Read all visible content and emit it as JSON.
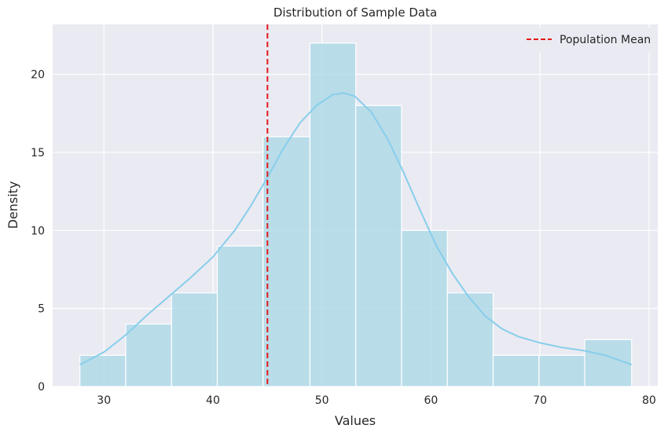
{
  "chart_data": {
    "type": "bar",
    "title": "Distribution of Sample Data",
    "xlabel": "Values",
    "ylabel": "Density",
    "xlim": [
      25.3,
      80.8
    ],
    "ylim": [
      0,
      23.2
    ],
    "x_ticks": [
      30,
      40,
      50,
      60,
      70,
      80
    ],
    "y_ticks": [
      0,
      5,
      10,
      15,
      20
    ],
    "grid": true,
    "legend_position": "top-right",
    "bin_edges": [
      27.8,
      32.0,
      36.2,
      40.4,
      44.6,
      48.9,
      53.1,
      57.3,
      61.5,
      65.7,
      69.9,
      74.1,
      78.4
    ],
    "counts": [
      2,
      4,
      6,
      9,
      16,
      22,
      18,
      10,
      6,
      2,
      2,
      3
    ],
    "kde": {
      "x": [
        27.8,
        30.0,
        32.0,
        34.0,
        36.0,
        38.0,
        40.0,
        42.0,
        43.5,
        45.0,
        46.5,
        48.0,
        49.5,
        51.0,
        52.0,
        53.0,
        54.5,
        56.0,
        57.5,
        59.0,
        60.5,
        62.0,
        63.5,
        65.0,
        66.5,
        68.0,
        70.0,
        72.0,
        74.0,
        76.0,
        78.4
      ],
      "y": [
        1.4,
        2.2,
        3.3,
        4.6,
        5.8,
        7.0,
        8.3,
        10.0,
        11.6,
        13.4,
        15.3,
        16.9,
        18.0,
        18.7,
        18.8,
        18.6,
        17.6,
        15.9,
        13.7,
        11.3,
        9.0,
        7.2,
        5.7,
        4.5,
        3.7,
        3.2,
        2.8,
        2.5,
        2.3,
        2.0,
        1.4
      ]
    },
    "reference_lines": [
      {
        "name": "Population Mean",
        "x": 45.0,
        "color": "#e31a1c",
        "style": "dashed"
      }
    ],
    "colors": {
      "bar": "#add8e6",
      "kde": "#87ceeb",
      "background": "#eaeaf2",
      "grid": "#ffffff"
    }
  }
}
